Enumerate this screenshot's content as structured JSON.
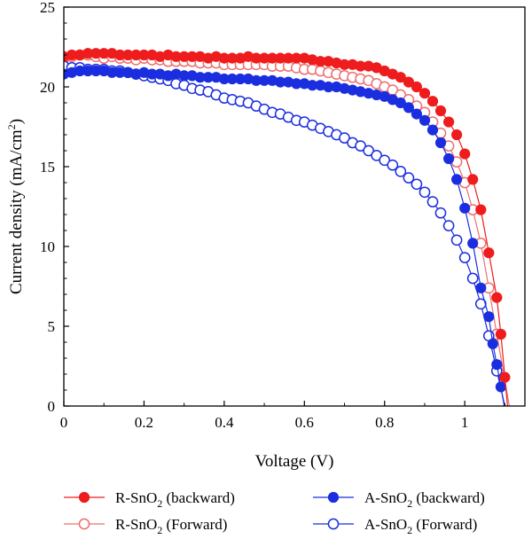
{
  "chart_data": {
    "type": "scatter",
    "xlabel": "Voltage (V)",
    "ylabel_main": "Current density (mA/cm",
    "ylabel_sup": "2",
    "ylabel_close": ")",
    "xlim": [
      0,
      1.15
    ],
    "ylim": [
      0,
      25
    ],
    "x_ticks": [
      "0",
      "0.2",
      "0.4",
      "0.6",
      "0.8",
      "1"
    ],
    "y_ticks": [
      "0",
      "5",
      "10",
      "15",
      "20",
      "25"
    ],
    "legend_position": "bottom",
    "series": [
      {
        "name_prefix": "R-SnO",
        "name_sub": "2",
        "name_suffix": " (backward)",
        "color": "#ee1c1c",
        "filled": true,
        "x": [
          0.0,
          0.02,
          0.04,
          0.06,
          0.08,
          0.1,
          0.12,
          0.14,
          0.16,
          0.18,
          0.2,
          0.22,
          0.24,
          0.26,
          0.28,
          0.3,
          0.32,
          0.34,
          0.36,
          0.38,
          0.4,
          0.42,
          0.44,
          0.46,
          0.48,
          0.5,
          0.52,
          0.54,
          0.56,
          0.58,
          0.6,
          0.62,
          0.64,
          0.66,
          0.68,
          0.7,
          0.72,
          0.74,
          0.76,
          0.78,
          0.8,
          0.82,
          0.84,
          0.86,
          0.88,
          0.9,
          0.92,
          0.94,
          0.96,
          0.98,
          1.0,
          1.02,
          1.04,
          1.06,
          1.08,
          1.09,
          1.1
        ],
        "y": [
          21.9,
          22.0,
          22.0,
          22.1,
          22.1,
          22.1,
          22.1,
          22.0,
          22.0,
          22.0,
          22.0,
          22.0,
          21.9,
          22.0,
          21.9,
          21.9,
          21.9,
          21.9,
          21.8,
          21.9,
          21.8,
          21.8,
          21.8,
          21.9,
          21.8,
          21.8,
          21.8,
          21.8,
          21.8,
          21.8,
          21.8,
          21.7,
          21.6,
          21.6,
          21.5,
          21.4,
          21.4,
          21.3,
          21.3,
          21.2,
          21.0,
          20.8,
          20.6,
          20.3,
          20.0,
          19.6,
          19.1,
          18.5,
          17.8,
          17.0,
          15.8,
          14.2,
          12.3,
          9.6,
          6.8,
          4.5,
          1.8
        ]
      },
      {
        "name_prefix": "R-SnO",
        "name_sub": "2",
        "name_suffix": " (Forward)",
        "color": "#ee6f6f",
        "filled": false,
        "x": [
          0.0,
          0.02,
          0.04,
          0.06,
          0.08,
          0.1,
          0.12,
          0.14,
          0.16,
          0.18,
          0.2,
          0.22,
          0.24,
          0.26,
          0.28,
          0.3,
          0.32,
          0.34,
          0.36,
          0.38,
          0.4,
          0.42,
          0.44,
          0.46,
          0.48,
          0.5,
          0.52,
          0.54,
          0.56,
          0.58,
          0.6,
          0.62,
          0.64,
          0.66,
          0.68,
          0.7,
          0.72,
          0.74,
          0.76,
          0.78,
          0.8,
          0.82,
          0.84,
          0.86,
          0.88,
          0.9,
          0.92,
          0.94,
          0.96,
          0.98,
          1.0,
          1.02,
          1.04,
          1.06,
          1.08
        ],
        "y": [
          21.8,
          21.9,
          22.0,
          22.0,
          21.9,
          21.8,
          21.9,
          21.8,
          21.8,
          21.7,
          21.8,
          21.7,
          21.7,
          21.6,
          21.6,
          21.6,
          21.6,
          21.5,
          21.5,
          21.5,
          21.4,
          21.4,
          21.4,
          21.4,
          21.4,
          21.4,
          21.3,
          21.3,
          21.3,
          21.2,
          21.1,
          21.1,
          21.0,
          20.9,
          20.8,
          20.7,
          20.6,
          20.5,
          20.4,
          20.2,
          20.0,
          19.8,
          19.5,
          19.2,
          18.8,
          18.4,
          17.8,
          17.1,
          16.3,
          15.3,
          14.0,
          12.3,
          10.2,
          7.4,
          4.5
        ]
      },
      {
        "name_prefix": "A-SnO",
        "name_sub": "2",
        "name_suffix": " (backward)",
        "color": "#1a2ee0",
        "filled": true,
        "x": [
          0.0,
          0.02,
          0.04,
          0.06,
          0.08,
          0.1,
          0.12,
          0.14,
          0.16,
          0.18,
          0.2,
          0.22,
          0.24,
          0.26,
          0.28,
          0.3,
          0.32,
          0.34,
          0.36,
          0.38,
          0.4,
          0.42,
          0.44,
          0.46,
          0.48,
          0.5,
          0.52,
          0.54,
          0.56,
          0.58,
          0.6,
          0.62,
          0.64,
          0.66,
          0.68,
          0.7,
          0.72,
          0.74,
          0.76,
          0.78,
          0.8,
          0.82,
          0.84,
          0.86,
          0.88,
          0.9,
          0.92,
          0.94,
          0.96,
          0.98,
          1.0,
          1.02,
          1.04,
          1.06,
          1.07,
          1.08,
          1.09
        ],
        "y": [
          20.8,
          20.9,
          21.0,
          21.0,
          21.0,
          21.0,
          20.9,
          20.9,
          20.9,
          20.8,
          20.9,
          20.8,
          20.8,
          20.7,
          20.8,
          20.7,
          20.7,
          20.6,
          20.6,
          20.6,
          20.5,
          20.5,
          20.5,
          20.5,
          20.4,
          20.4,
          20.4,
          20.3,
          20.3,
          20.2,
          20.2,
          20.1,
          20.1,
          20.0,
          20.0,
          19.9,
          19.8,
          19.7,
          19.6,
          19.5,
          19.4,
          19.2,
          19.0,
          18.7,
          18.3,
          17.9,
          17.3,
          16.5,
          15.5,
          14.2,
          12.4,
          10.2,
          7.4,
          5.6,
          3.9,
          2.6,
          1.2
        ]
      },
      {
        "name_prefix": "A-SnO",
        "name_sub": "2",
        "name_suffix": " (Forward)",
        "color": "#1a2ee0",
        "filled": false,
        "x": [
          0.0,
          0.02,
          0.04,
          0.06,
          0.08,
          0.1,
          0.12,
          0.14,
          0.16,
          0.18,
          0.2,
          0.22,
          0.24,
          0.26,
          0.28,
          0.3,
          0.32,
          0.34,
          0.36,
          0.38,
          0.4,
          0.42,
          0.44,
          0.46,
          0.48,
          0.5,
          0.52,
          0.54,
          0.56,
          0.58,
          0.6,
          0.62,
          0.64,
          0.66,
          0.68,
          0.7,
          0.72,
          0.74,
          0.76,
          0.78,
          0.8,
          0.82,
          0.84,
          0.86,
          0.88,
          0.9,
          0.92,
          0.94,
          0.96,
          0.98,
          1.0,
          1.02,
          1.04,
          1.06,
          1.08
        ],
        "y": [
          21.3,
          21.2,
          21.2,
          21.1,
          21.1,
          21.1,
          21.0,
          21.0,
          20.9,
          20.8,
          20.7,
          20.6,
          20.5,
          20.4,
          20.2,
          20.1,
          19.9,
          19.8,
          19.7,
          19.5,
          19.3,
          19.2,
          19.1,
          19.0,
          18.8,
          18.6,
          18.4,
          18.3,
          18.1,
          17.9,
          17.8,
          17.6,
          17.4,
          17.2,
          17.0,
          16.8,
          16.5,
          16.3,
          16.0,
          15.7,
          15.4,
          15.1,
          14.7,
          14.3,
          13.9,
          13.4,
          12.8,
          12.1,
          11.3,
          10.4,
          9.3,
          8.0,
          6.4,
          4.4,
          2.2
        ]
      }
    ]
  }
}
